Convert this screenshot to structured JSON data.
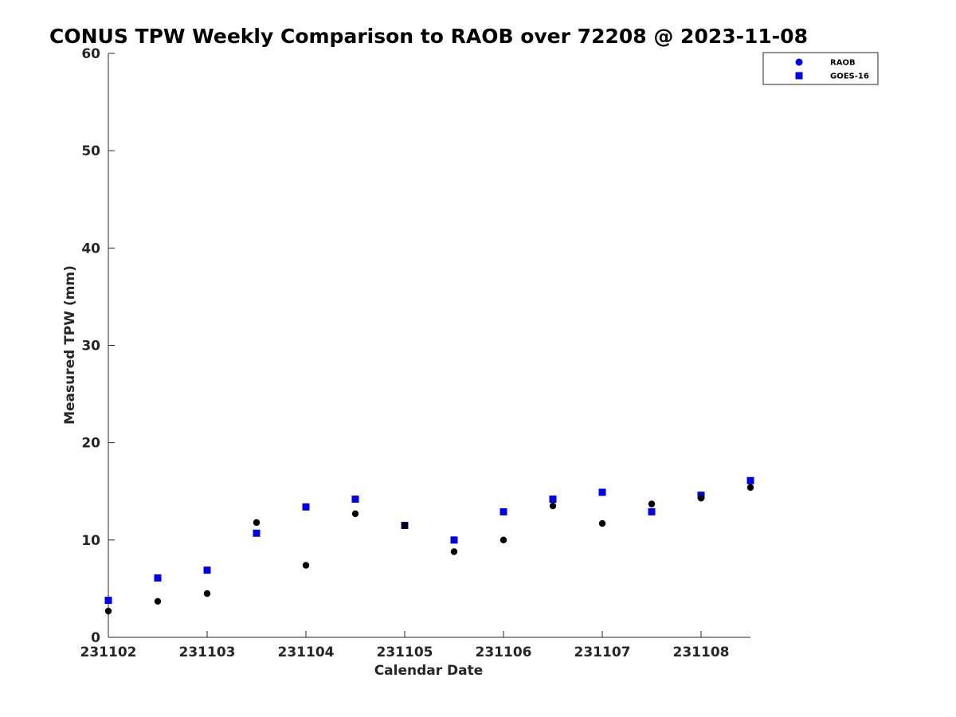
{
  "chart_data": {
    "type": "scatter",
    "title": "CONUS TPW Weekly Comparison to RAOB over 72208 @ 2023-11-08",
    "xlabel": "Calendar Date",
    "ylabel": "Measured TPW (mm)",
    "xlim": [
      "2023-11-02",
      "2023-11-08 12:00"
    ],
    "ylim": [
      0,
      60
    ],
    "xticks": [
      "231102",
      "231103",
      "231104",
      "231105",
      "231106",
      "231107",
      "231108"
    ],
    "yticks": [
      0,
      10,
      20,
      30,
      40,
      50,
      60
    ],
    "grid": false,
    "legend_position": "top-right",
    "series": [
      {
        "name": "RAOB",
        "marker": "circle",
        "color": "#000000",
        "legend_color": "#0000e0",
        "x": [
          "2023-11-02 00:00",
          "2023-11-02 12:00",
          "2023-11-03 00:00",
          "2023-11-03 12:00",
          "2023-11-04 00:00",
          "2023-11-04 12:00",
          "2023-11-05 00:00",
          "2023-11-05 12:00",
          "2023-11-06 00:00",
          "2023-11-06 12:00",
          "2023-11-07 00:00",
          "2023-11-07 12:00",
          "2023-11-08 00:00",
          "2023-11-08 12:00"
        ],
        "y": [
          2.7,
          3.7,
          4.5,
          11.8,
          7.4,
          12.7,
          11.5,
          8.8,
          10.0,
          13.5,
          11.7,
          13.7,
          14.3,
          15.4
        ]
      },
      {
        "name": "GOES-16",
        "marker": "square",
        "color": "#0000e0",
        "x": [
          "2023-11-02 00:00",
          "2023-11-02 12:00",
          "2023-11-03 00:00",
          "2023-11-03 12:00",
          "2023-11-04 00:00",
          "2023-11-04 12:00",
          "2023-11-05 00:00",
          "2023-11-05 12:00",
          "2023-11-06 00:00",
          "2023-11-06 12:00",
          "2023-11-07 00:00",
          "2023-11-07 12:00",
          "2023-11-08 00:00",
          "2023-11-08 12:00"
        ],
        "y": [
          3.8,
          6.1,
          6.9,
          10.7,
          13.4,
          14.2,
          11.5,
          10.0,
          12.9,
          14.2,
          14.9,
          12.9,
          14.6,
          16.1
        ]
      }
    ]
  }
}
